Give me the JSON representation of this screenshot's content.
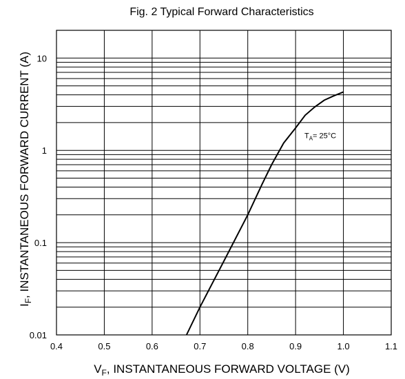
{
  "chart_data": {
    "type": "line",
    "title": "Fig. 2 Typical Forward Characteristics",
    "xlabel": {
      "main": "V",
      "sub": "F",
      "rest": ", INSTANTANEOUS FORWARD VOLTAGE (V)"
    },
    "ylabel": {
      "main": "I",
      "sub": "F",
      "rest": ", INSTANTANEOUS FORWARD CURRENT (A)"
    },
    "x_ticks": [
      "0.4",
      "0.5",
      "0.6",
      "0.7",
      "0.8",
      "0.9",
      "1.0",
      "1.1"
    ],
    "y_ticks": [
      "0.01",
      "0.1",
      "1",
      "10"
    ],
    "xlim": [
      0.4,
      1.1
    ],
    "ylim": [
      0.01,
      20
    ],
    "y_scale": "log",
    "grid": true,
    "annotation": {
      "main": "T",
      "sub": "A",
      "rest": "= 25°C",
      "x": 0.93,
      "y": 1.45
    },
    "series": [
      {
        "x": [
          0.672,
          0.7,
          0.75,
          0.8,
          0.83,
          0.85,
          0.875,
          0.9,
          0.92,
          0.94,
          0.96,
          0.98,
          1.0
        ],
        "y": [
          0.01,
          0.02,
          0.063,
          0.2,
          0.43,
          0.7,
          1.2,
          1.75,
          2.4,
          2.95,
          3.5,
          3.9,
          4.3
        ]
      }
    ]
  }
}
